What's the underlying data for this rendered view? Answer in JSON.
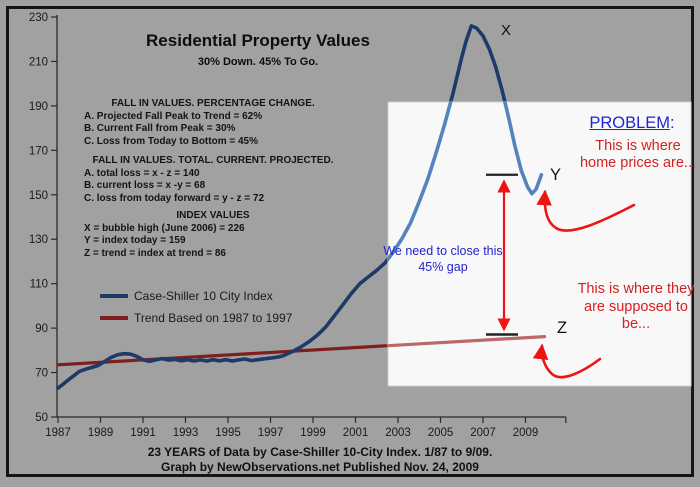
{
  "title": "Residential Property Values",
  "subtitle": "30% Down. 45% To Go.",
  "stats": {
    "percentage_change": {
      "heading": "FALL IN VALUES. PERCENTAGE CHANGE.",
      "a": "A. Projected Fall Peak to Trend = 62%",
      "b": "B. Current Fall from Peak = 30%",
      "c": "C. Loss from Today to Bottom = 45%"
    },
    "totals": {
      "heading": "FALL IN VALUES. TOTAL. CURRENT. PROJECTED.",
      "a": "A. total loss = x - z = 140",
      "b": "B. current loss = x -y = 68",
      "c": "C. loss from today forward = y - z = 72"
    },
    "index_values": {
      "heading": "INDEX VALUES",
      "x": "X = bubble high (June 2006) = 226",
      "y": "Y = index today = 159",
      "z": "Z = trend = index at trend = 86"
    }
  },
  "annotations": {
    "problem_heading": "PROBLEM",
    "problem_colon": ":",
    "prices_are": "This is where home prices are...",
    "gap": "We need to close this 45% gap",
    "supposed_to_be": "This is where they are supposed to be...",
    "peak_label": "X",
    "today_label": "Y",
    "trend_label": "Z"
  },
  "captions": {
    "line1": "23 YEARS of Data by Case-Shiller 10-City Index. 1/87 to 9/09.",
    "line2": "Graph by NewObservations.net Published Nov. 24, 2009"
  },
  "colors": {
    "background": "#A1A1A1",
    "frame": "#151515",
    "axis": "#2A2A2A",
    "tick_text": "#1A1A1A",
    "curve": "#1E3A68",
    "curve_in_overlay": "#5584BC",
    "trend": "#7E1E1E",
    "trend_in_overlay": "#BA6868",
    "annotation_red": "#D42222",
    "annotation_blue": "#2323CF",
    "arrow_red": "#EE1414",
    "overlay_box": "#FFFFFF"
  },
  "chart_data": {
    "type": "line",
    "title": "Residential Property Values",
    "subtitle": "30% Down. 45% To Go.",
    "x_axis": {
      "tick_years": [
        1987,
        1989,
        1991,
        1993,
        1995,
        1997,
        1999,
        2001,
        2003,
        2005,
        2007,
        2009
      ],
      "range": [
        1987,
        2010.9
      ]
    },
    "y_axis": {
      "ticks": [
        230,
        210,
        190,
        170,
        150,
        130,
        110,
        90,
        70,
        50
      ],
      "range": [
        50,
        230
      ]
    },
    "series": [
      {
        "name": "Case-Shiller 10 City Index",
        "color": "#1E3A68",
        "color_in_overlay": "#5584BC",
        "points": [
          [
            1987.0,
            63
          ],
          [
            1987.2,
            64.5
          ],
          [
            1987.4,
            66
          ],
          [
            1987.6,
            67.5
          ],
          [
            1987.8,
            69
          ],
          [
            1988.0,
            70.5
          ],
          [
            1988.3,
            71.5
          ],
          [
            1988.6,
            72.3
          ],
          [
            1988.9,
            73.2
          ],
          [
            1989.2,
            75
          ],
          [
            1989.5,
            76.8
          ],
          [
            1989.8,
            78
          ],
          [
            1990.1,
            78.5
          ],
          [
            1990.4,
            78.3
          ],
          [
            1990.7,
            77.3
          ],
          [
            1991.0,
            75.8
          ],
          [
            1991.3,
            75.0
          ],
          [
            1991.6,
            75.7
          ],
          [
            1991.9,
            76.3
          ],
          [
            1992.2,
            75.6
          ],
          [
            1992.5,
            75.9
          ],
          [
            1992.8,
            75.3
          ],
          [
            1993.1,
            75.8
          ],
          [
            1993.4,
            75.2
          ],
          [
            1993.7,
            75.7
          ],
          [
            1994.0,
            75.2
          ],
          [
            1994.3,
            75.8
          ],
          [
            1994.6,
            75.3
          ],
          [
            1994.9,
            75.8
          ],
          [
            1995.2,
            75.2
          ],
          [
            1995.5,
            75.7
          ],
          [
            1995.8,
            76.1
          ],
          [
            1996.1,
            75.4
          ],
          [
            1996.4,
            75.8
          ],
          [
            1996.7,
            76.2
          ],
          [
            1997.0,
            76.5
          ],
          [
            1997.3,
            76.9
          ],
          [
            1997.6,
            77.6
          ],
          [
            1998.0,
            79.3
          ],
          [
            1998.4,
            81.3
          ],
          [
            1998.8,
            83.8
          ],
          [
            1999.2,
            86.8
          ],
          [
            1999.6,
            90.5
          ],
          [
            2000.0,
            95.5
          ],
          [
            2000.4,
            100.5
          ],
          [
            2000.8,
            105.5
          ],
          [
            2001.2,
            110
          ],
          [
            2001.6,
            113
          ],
          [
            2002.0,
            116
          ],
          [
            2002.4,
            119.5
          ],
          [
            2002.8,
            124.5
          ],
          [
            2003.2,
            130.5
          ],
          [
            2003.6,
            137.5
          ],
          [
            2004.0,
            147
          ],
          [
            2004.4,
            157
          ],
          [
            2004.8,
            169
          ],
          [
            2005.2,
            182
          ],
          [
            2005.6,
            196
          ],
          [
            2006.0,
            212
          ],
          [
            2006.2,
            219
          ],
          [
            2006.45,
            226
          ],
          [
            2006.7,
            225
          ],
          [
            2007.0,
            221.5
          ],
          [
            2007.3,
            215.5
          ],
          [
            2007.6,
            207.5
          ],
          [
            2007.9,
            197
          ],
          [
            2008.2,
            185
          ],
          [
            2008.5,
            172
          ],
          [
            2008.8,
            161
          ],
          [
            2009.1,
            153.5
          ],
          [
            2009.3,
            150.5
          ],
          [
            2009.5,
            152.5
          ],
          [
            2009.75,
            159
          ]
        ]
      },
      {
        "name": "Trend Based on 1987 to 1997",
        "color": "#7E1E1E",
        "color_in_overlay": "#BA6868",
        "points": [
          [
            1987.0,
            73.5
          ],
          [
            2009.9,
            86.2
          ]
        ]
      }
    ],
    "key_values": {
      "X_bubble_high": 226,
      "Y_index_today": 159,
      "Z_trend": 86
    },
    "layout": {
      "gridlines": false,
      "legend_position": "inside-left"
    }
  }
}
